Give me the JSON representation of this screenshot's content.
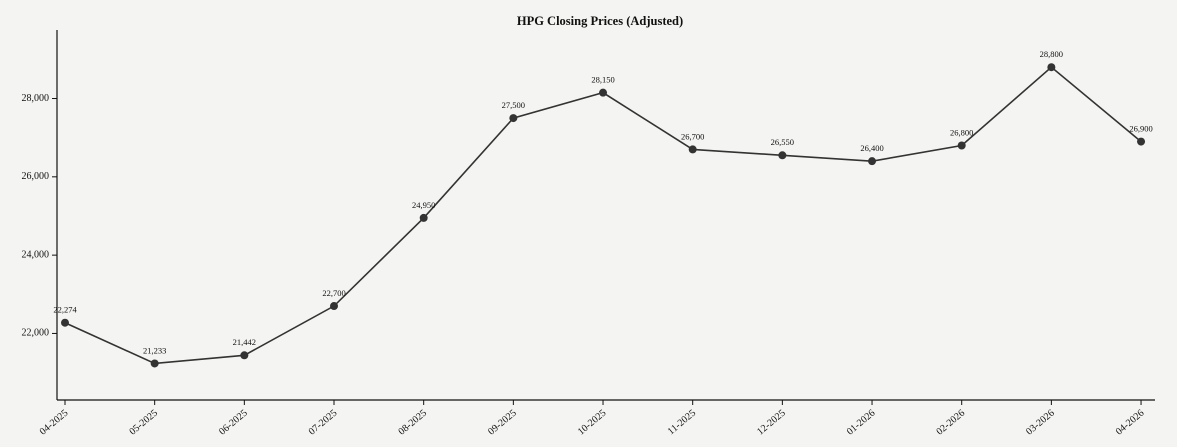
{
  "chart_data": {
    "type": "line",
    "title": "HPG Closing Prices (Adjusted)",
    "categories": [
      "04-2025",
      "05-2025",
      "06-2025",
      "07-2025",
      "08-2025",
      "09-2025",
      "10-2025",
      "11-2025",
      "12-2025",
      "01-2026",
      "02-2026",
      "03-2026",
      "04-2026"
    ],
    "series": [
      {
        "name": "HPG",
        "color": "#333333",
        "values": [
          22274,
          21233,
          21442,
          22700,
          24950,
          27500,
          28150,
          26700,
          26550,
          26400,
          26800,
          28800,
          26900
        ],
        "value_labels": [
          "22,274",
          "21,233",
          "21,442",
          "22,700",
          "24,950",
          "27,500",
          "28,150",
          "26,700",
          "26,550",
          "26,400",
          "26,800",
          "28,800",
          "26,900"
        ]
      }
    ],
    "ylim": [
      20300,
      29750
    ],
    "yticks": [
      {
        "value": 22000,
        "label": "22,000"
      },
      {
        "value": 24000,
        "label": "24,000"
      },
      {
        "value": 26000,
        "label": "26,000"
      },
      {
        "value": 28000,
        "label": "28,000"
      }
    ],
    "grid": false
  }
}
